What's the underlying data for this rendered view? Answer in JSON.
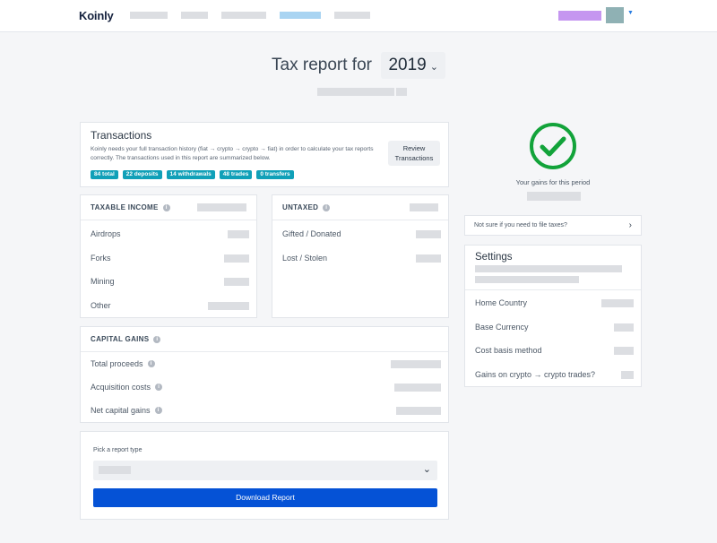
{
  "header": {
    "logo": "Koinly"
  },
  "title": {
    "prefix": "Tax report for",
    "year": "2019"
  },
  "transactions": {
    "title": "Transactions",
    "description": "Koinly needs your full transaction history (fiat → crypto → crypto → fiat) in order to calculate your tax reports correctly. The transactions used in this report are summarized below.",
    "badges": [
      "84 total",
      "22 deposits",
      "14 withdrawals",
      "48 trades",
      "0 transfers"
    ],
    "review_button": "Review Transactions"
  },
  "taxable_income": {
    "header": "TAXABLE INCOME",
    "rows": [
      "Airdrops",
      "Forks",
      "Mining",
      "Other"
    ]
  },
  "untaxed": {
    "header": "UNTAXED",
    "rows": [
      "Gifted / Donated",
      "Lost / Stolen"
    ]
  },
  "capital_gains": {
    "header": "CAPITAL GAINS",
    "rows": [
      "Total proceeds",
      "Acquisition costs",
      "Net capital gains"
    ]
  },
  "report": {
    "pick_label": "Pick a report type",
    "download_button": "Download Report"
  },
  "gains_status": {
    "label": "Your gains for this period",
    "icon": "check-circle-icon",
    "color": "#12a33a"
  },
  "not_sure": {
    "label": "Not sure if you need to file taxes?"
  },
  "settings": {
    "title": "Settings",
    "rows": [
      "Home Country",
      "Base Currency",
      "Cost basis method",
      "Gains on crypto → crypto trades?"
    ]
  },
  "colors": {
    "badge": "#10a0b8",
    "primary_button": "#0552d6",
    "user_chip": "#c596f0",
    "active_nav": "#a9d4f2"
  }
}
